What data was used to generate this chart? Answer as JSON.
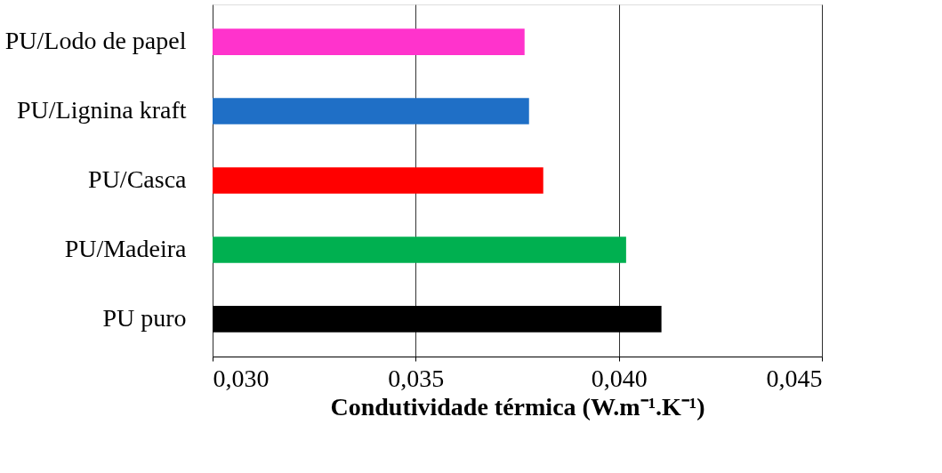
{
  "chart_data": {
    "type": "bar",
    "orientation": "horizontal",
    "categories": [
      "PU/Lodo de papel",
      "PU/Lignina kraft",
      "PU/Casca",
      "PU/Madeira",
      "PU puro"
    ],
    "values": [
      0.03768,
      0.03779,
      0.03814,
      0.04018,
      0.04105
    ],
    "colors": [
      "#ff33cc",
      "#1f6fc6",
      "#ff0000",
      "#00b050",
      "#000000"
    ],
    "xlim": [
      0.03,
      0.045
    ],
    "xticks": [
      {
        "value": 0.03,
        "label": "0,030"
      },
      {
        "value": 0.035,
        "label": "0,035"
      },
      {
        "value": 0.04,
        "label": "0,040"
      },
      {
        "value": 0.045,
        "label": "0,045"
      }
    ],
    "xlabel": "Condutividade térmica (W.m⁻¹.K⁻¹)",
    "grid": "x"
  }
}
